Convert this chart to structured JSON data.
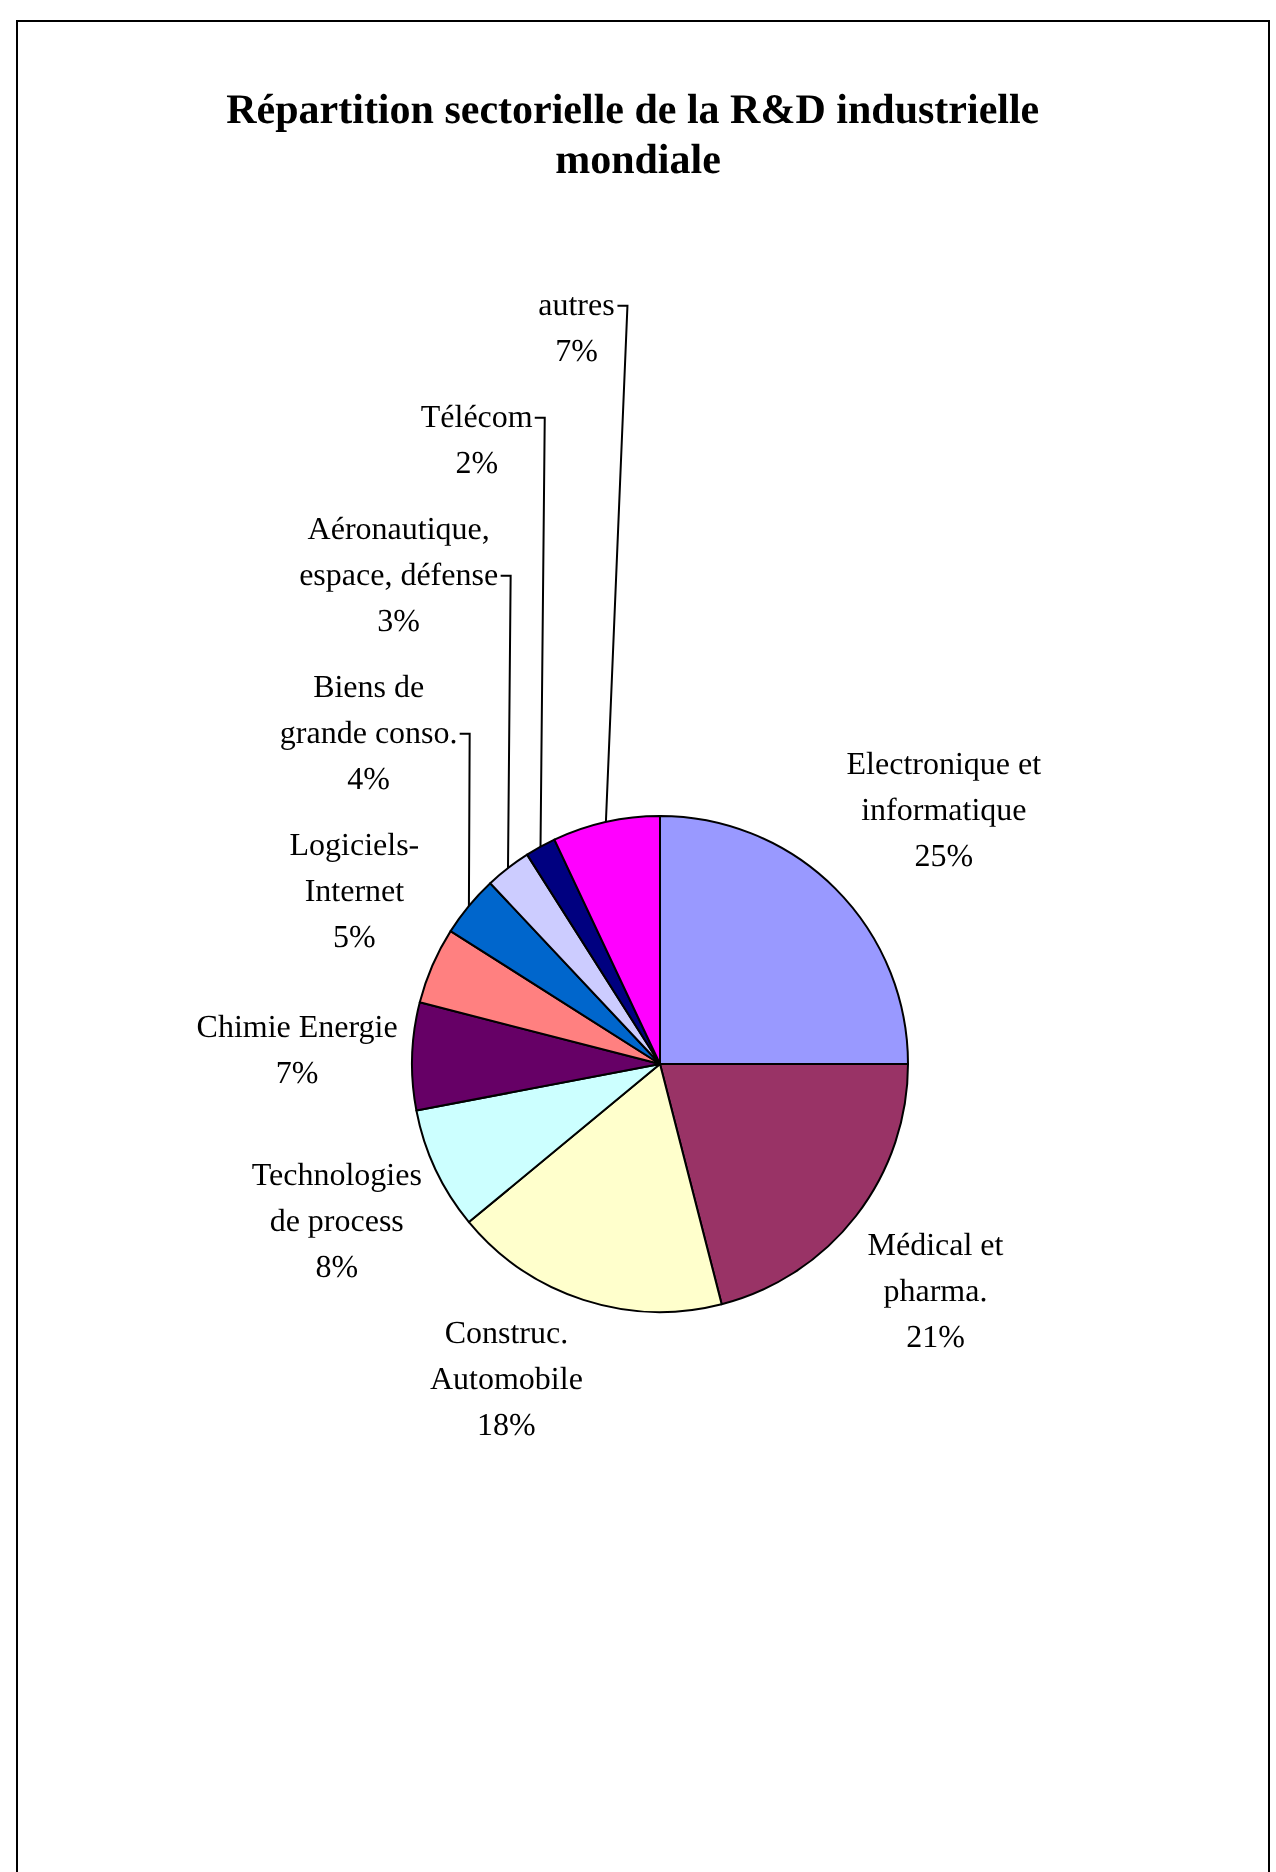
{
  "chart_data": {
    "type": "pie",
    "title": "Répartition sectorielle de la R&D industrielle mondiale",
    "categories": [
      "Electronique et informatique",
      "Médical et pharma.",
      "Construc. Automobile",
      "Technologies de process",
      "Chimie Energie",
      "Logiciels-Internet",
      "Biens de grande conso.",
      "Aéronautique, espace, défense",
      "Télécom",
      "autres"
    ],
    "values": [
      25,
      21,
      18,
      8,
      7,
      5,
      4,
      3,
      2,
      7
    ],
    "value_labels": [
      "25%",
      "21%",
      "18%",
      "8%",
      "7%",
      "5%",
      "4%",
      "3%",
      "2%",
      "7%"
    ],
    "colors": [
      "#9999ff",
      "#993366",
      "#ffffcc",
      "#ccffff",
      "#660066",
      "#ff8080",
      "#0066cc",
      "#ccccff",
      "#000080",
      "#ff00ff"
    ]
  }
}
